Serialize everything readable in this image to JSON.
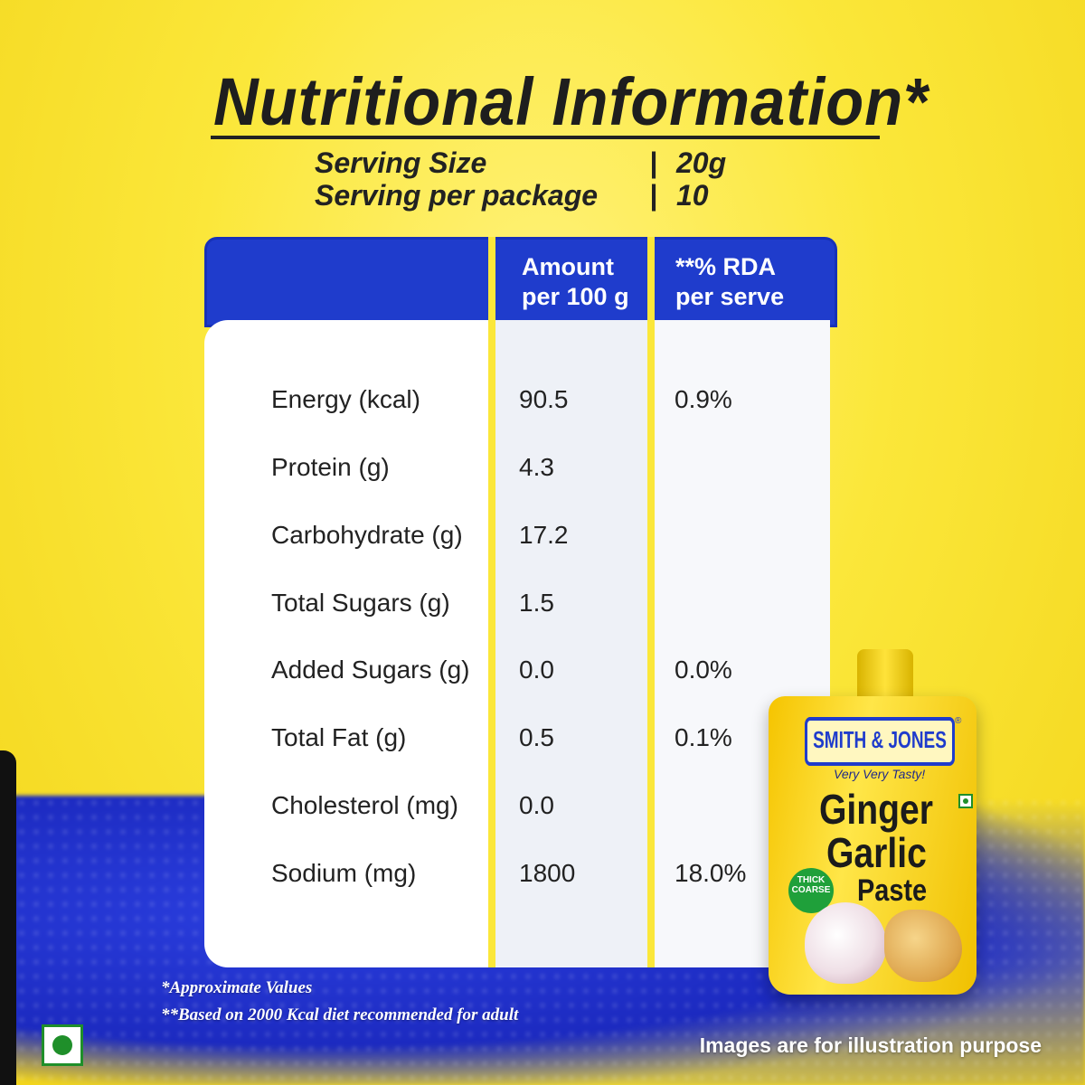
{
  "title": "Nutritional Information*",
  "serving": {
    "size_label": "Serving Size",
    "size_value": "20g",
    "per_package_label": "Serving per package",
    "per_package_value": "10",
    "separator": "|"
  },
  "table": {
    "headers": [
      "",
      "Amount\nper 100 g",
      "**% RDA\nper serve"
    ],
    "rows": [
      {
        "nutrient": "Energy (kcal)",
        "amount": "90.5",
        "rda": "0.9%"
      },
      {
        "nutrient": "Protein (g)",
        "amount": "4.3",
        "rda": ""
      },
      {
        "nutrient": "Carbohydrate (g)",
        "amount": "17.2",
        "rda": ""
      },
      {
        "nutrient": "Total Sugars (g)",
        "amount": "1.5",
        "rda": ""
      },
      {
        "nutrient": "Added Sugars (g)",
        "amount": "0.0",
        "rda": "0.0%"
      },
      {
        "nutrient": "Total Fat (g)",
        "amount": "0.5",
        "rda": "0.1%"
      },
      {
        "nutrient": "Cholesterol (mg)",
        "amount": "0.0",
        "rda": ""
      },
      {
        "nutrient": "Sodium (mg)",
        "amount": "1800",
        "rda": "18.0%"
      }
    ]
  },
  "footnotes": {
    "approx": "*Approximate Values",
    "rda_basis": "**Based on 2000 Kcal diet recommended for adult"
  },
  "disclaimer": "Images are for illustration purpose",
  "product": {
    "brand": "SMITH & JONES",
    "registered": "®",
    "tagline": "Very Very Tasty!",
    "name_line1": "Ginger",
    "name_line2": "Garlic",
    "name_line3": "Paste",
    "badge": "THICK COARSE"
  },
  "colors": {
    "background": "#fbe73a",
    "header_blue": "#1f3ccc",
    "veg_green": "#1f8f2a"
  }
}
